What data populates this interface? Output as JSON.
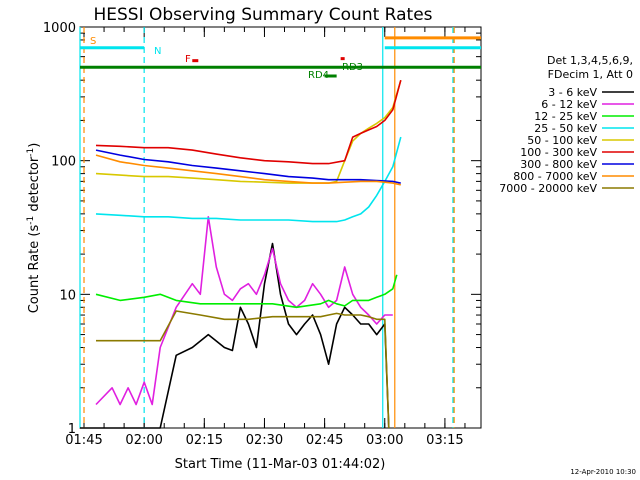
{
  "chart_data": {
    "type": "line",
    "title": "HESSI Observing Summary Count Rates",
    "xlabel": "Start Time (11-Mar-03 01:44:02)",
    "ylabel_main": "Count Rate (s",
    "ylabel_sup1": "-1",
    "ylabel_mid": " detector",
    "ylabel_sup2": "-1",
    "ylabel_end": ")",
    "yscale": "log",
    "ylim": [
      1,
      1000
    ],
    "xlim_minutes": [
      0,
      100
    ],
    "x_ticks": [
      "01:45",
      "02:00",
      "02:15",
      "02:30",
      "02:45",
      "03:00",
      "03:15"
    ],
    "x_tick_minutes": [
      1,
      16,
      31,
      46,
      61,
      76,
      91
    ],
    "y_ticks": [
      "1",
      "10",
      "100",
      "1000"
    ],
    "y_tick_values": [
      1,
      10,
      100,
      1000
    ],
    "legend_header": [
      "Det 1,3,4,5,6,9,",
      "FDecim 1, Att 0"
    ],
    "footer_date": "12-Apr-2010 10:30",
    "series": [
      {
        "name": "3 - 6 keV",
        "color": "#000000",
        "x": [
          0,
          20,
          24,
          28,
          32,
          36,
          38,
          40,
          42,
          44,
          46,
          48,
          50,
          52,
          54,
          56,
          58,
          60,
          62,
          64,
          66,
          68,
          70,
          72,
          74,
          76,
          77
        ],
        "y": [
          0,
          0,
          3.5,
          4,
          5,
          4,
          3.8,
          8,
          6,
          4,
          12,
          24,
          10,
          6,
          5,
          6,
          7,
          5,
          3,
          6,
          8,
          7,
          6,
          6,
          5,
          6,
          0
        ]
      },
      {
        "name": "6 - 12 keV",
        "color": "#e020e0",
        "x": [
          4,
          8,
          10,
          12,
          14,
          16,
          18,
          20,
          24,
          28,
          30,
          32,
          34,
          36,
          38,
          40,
          42,
          44,
          46,
          48,
          50,
          52,
          54,
          56,
          58,
          60,
          62,
          64,
          66,
          68,
          70,
          72,
          74,
          76,
          78
        ],
        "y": [
          1.5,
          2,
          1.5,
          2,
          1.5,
          2.2,
          1.5,
          4,
          8,
          12,
          10,
          38,
          16,
          10,
          9,
          11,
          12,
          10,
          14,
          22,
          12,
          9,
          8,
          9,
          12,
          10,
          8,
          9,
          16,
          10,
          8,
          7,
          6,
          7,
          7
        ]
      },
      {
        "name": "12 - 25 keV",
        "color": "#00ee00",
        "x": [
          4,
          10,
          16,
          20,
          24,
          30,
          36,
          42,
          48,
          54,
          60,
          62,
          64,
          66,
          68,
          70,
          72,
          74,
          76,
          78,
          79
        ],
        "y": [
          10,
          9,
          9.5,
          10,
          9,
          8.5,
          8.5,
          8.5,
          8.5,
          8,
          8.5,
          9,
          8.5,
          8.2,
          9,
          9,
          9,
          9.5,
          10,
          11,
          14
        ]
      },
      {
        "name": "25 - 50 keV",
        "color": "#00e5ee",
        "x": [
          4,
          10,
          16,
          22,
          28,
          34,
          40,
          46,
          52,
          58,
          64,
          66,
          68,
          70,
          72,
          74,
          76,
          78,
          80
        ],
        "y": [
          40,
          39,
          38,
          38,
          37,
          37,
          36,
          36,
          36,
          35,
          35,
          36,
          38,
          40,
          45,
          55,
          70,
          90,
          150
        ]
      },
      {
        "name": "50 - 100 keV",
        "color": "#d8c800",
        "x": [
          4,
          10,
          16,
          22,
          28,
          34,
          40,
          46,
          52,
          58,
          62,
          64,
          66,
          68,
          70,
          72,
          74,
          76,
          78,
          80
        ],
        "y": [
          80,
          78,
          76,
          76,
          74,
          72,
          70,
          69,
          68,
          68,
          68,
          70,
          100,
          140,
          160,
          175,
          190,
          210,
          250,
          400
        ]
      },
      {
        "name": "100 - 300 keV",
        "color": "#e00000",
        "x": [
          4,
          10,
          16,
          22,
          28,
          34,
          40,
          46,
          52,
          58,
          62,
          66,
          68,
          70,
          72,
          74,
          76,
          78,
          80
        ],
        "y": [
          130,
          128,
          125,
          125,
          120,
          112,
          105,
          100,
          98,
          95,
          95,
          100,
          150,
          160,
          170,
          180,
          200,
          240,
          400
        ]
      },
      {
        "name": "300 - 800 keV",
        "color": "#0000e0",
        "x": [
          4,
          10,
          16,
          22,
          28,
          34,
          40,
          46,
          52,
          58,
          62,
          66,
          70,
          74,
          78,
          80
        ],
        "y": [
          120,
          110,
          102,
          98,
          92,
          88,
          84,
          80,
          76,
          74,
          72,
          72,
          72,
          71,
          70,
          68
        ]
      },
      {
        "name": "800 - 7000 keV",
        "color": "#ff8c00",
        "x": [
          4,
          10,
          16,
          22,
          28,
          34,
          40,
          46,
          52,
          58,
          62,
          66,
          70,
          74,
          78,
          80
        ],
        "y": [
          110,
          98,
          92,
          88,
          84,
          80,
          76,
          72,
          70,
          68,
          68,
          69,
          70,
          70,
          68,
          66
        ]
      },
      {
        "name": "7000 - 20000 keV",
        "color": "#8b7a00",
        "x": [
          4,
          10,
          16,
          20,
          24,
          30,
          36,
          42,
          48,
          54,
          60,
          62,
          64,
          66,
          68,
          70,
          72,
          74,
          76,
          77
        ],
        "y": [
          4.5,
          4.5,
          4.5,
          4.5,
          7.5,
          7,
          6.5,
          6.5,
          6.8,
          6.8,
          6.8,
          7,
          7.2,
          7,
          7,
          7,
          6.8,
          6.5,
          6.5,
          0
        ]
      }
    ],
    "annotations": [
      {
        "text": "S",
        "color": "#ff8c00"
      },
      {
        "text": "N",
        "color": "#00e5ee"
      },
      {
        "text": "F",
        "color": "#e00000"
      },
      {
        "text": "RD4",
        "color": "#008000"
      },
      {
        "text": "RD3",
        "color": "#008000"
      }
    ],
    "flag_bars": [
      {
        "label": "S",
        "color": "#ff8c00",
        "x": [
          76,
          100
        ],
        "y": 830
      },
      {
        "label": "N",
        "color": "#00e5ee",
        "x": [
          0,
          16
        ],
        "y": 700
      },
      {
        "label": "N",
        "color": "#00e5ee",
        "x": [
          76,
          100
        ],
        "y": 700
      },
      {
        "label": "F",
        "color": "#e00000",
        "x": [
          28,
          29.5
        ],
        "y": 560
      },
      {
        "label": "RD3",
        "color": "#e00000",
        "x": [
          65,
          66
        ],
        "y": 580
      },
      {
        "label": "RD4",
        "color": "#008000",
        "x": [
          0,
          100
        ],
        "y": 500
      },
      {
        "label": "RD4",
        "color": "#008000",
        "x": [
          61,
          64
        ],
        "y": 430
      }
    ],
    "vertical_markers": [
      {
        "color": "#00e5ee",
        "x": 0,
        "style": "solid"
      },
      {
        "color": "#ff8c00",
        "x": 1,
        "style": "dashed"
      },
      {
        "color": "#00e5ee",
        "x": 16,
        "style": "dashed"
      },
      {
        "color": "#00e5ee",
        "x": 75.5,
        "style": "solid"
      },
      {
        "color": "#ff8c00",
        "x": 78.5,
        "style": "solid"
      },
      {
        "color": "#00e5ee",
        "x": 93,
        "style": "dashed"
      },
      {
        "color": "#ff8c00",
        "x": 93.3,
        "style": "dashed"
      }
    ]
  }
}
